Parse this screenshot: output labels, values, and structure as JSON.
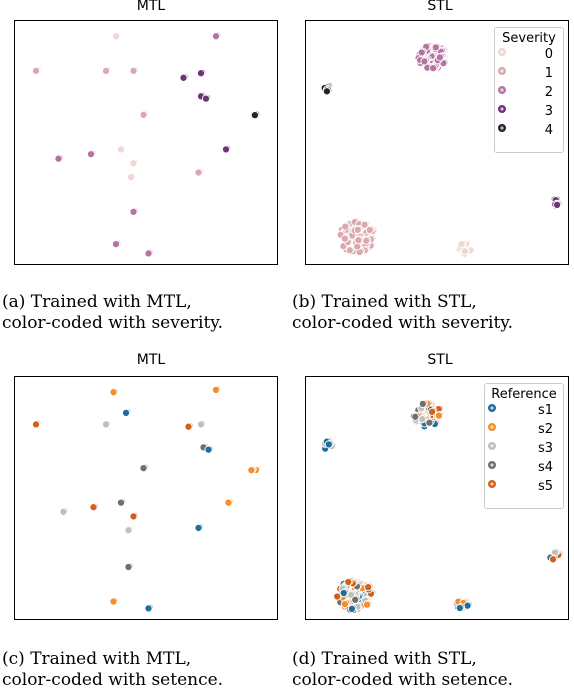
{
  "chart_data": [
    {
      "type": "scatter",
      "title": "MTL",
      "caption": [
        "(a) Trained with MTL,",
        "color-coded with severity."
      ],
      "legend": null,
      "clusters": [
        {
          "x": 0.38,
          "y": 0.96,
          "n": 1,
          "cls": 0
        },
        {
          "x": 0.78,
          "y": 0.96,
          "n": 1,
          "cls": 2
        },
        {
          "x": 0.06,
          "y": 0.81,
          "n": 1,
          "cls": 1
        },
        {
          "x": 0.34,
          "y": 0.81,
          "n": 1,
          "cls": 1
        },
        {
          "x": 0.45,
          "y": 0.81,
          "n": 1,
          "cls": 1
        },
        {
          "x": 0.65,
          "y": 0.78,
          "n": 1,
          "cls": 3
        },
        {
          "x": 0.72,
          "y": 0.8,
          "n": 1,
          "cls": 3
        },
        {
          "x": 0.72,
          "y": 0.7,
          "n": 1,
          "cls": 3
        },
        {
          "x": 0.74,
          "y": 0.69,
          "n": 1,
          "cls": 3
        },
        {
          "x": 0.94,
          "y": 0.61,
          "n": 3,
          "cls": 4
        },
        {
          "x": 0.49,
          "y": 0.62,
          "n": 1,
          "cls": 1
        },
        {
          "x": 0.4,
          "y": 0.47,
          "n": 1,
          "cls": 0
        },
        {
          "x": 0.82,
          "y": 0.47,
          "n": 1,
          "cls": 3
        },
        {
          "x": 0.15,
          "y": 0.43,
          "n": 1,
          "cls": 2
        },
        {
          "x": 0.28,
          "y": 0.45,
          "n": 1,
          "cls": 2
        },
        {
          "x": 0.45,
          "y": 0.41,
          "n": 1,
          "cls": 0
        },
        {
          "x": 0.71,
          "y": 0.37,
          "n": 1,
          "cls": 1
        },
        {
          "x": 0.44,
          "y": 0.35,
          "n": 1,
          "cls": 0
        },
        {
          "x": 0.45,
          "y": 0.2,
          "n": 1,
          "cls": 2
        },
        {
          "x": 0.38,
          "y": 0.06,
          "n": 1,
          "cls": 2
        },
        {
          "x": 0.51,
          "y": 0.02,
          "n": 1,
          "cls": 2
        }
      ]
    },
    {
      "type": "scatter",
      "title": "STL",
      "caption": [
        "(b) Trained with STL,",
        "color-coded with severity."
      ],
      "legend": {
        "title": "Severity",
        "entries": [
          "0",
          "1",
          "2",
          "3",
          "4"
        ]
      },
      "clusters": [
        {
          "x": 0.48,
          "y": 0.87,
          "n": 55,
          "r": 0.055,
          "cls": 2
        },
        {
          "x": 0.06,
          "y": 0.73,
          "n": 5,
          "r": 0.012,
          "cls": 4
        },
        {
          "x": 0.98,
          "y": 0.24,
          "n": 9,
          "r": 0.018,
          "cls": 3
        },
        {
          "x": 0.18,
          "y": 0.09,
          "n": 65,
          "r": 0.07,
          "cls": 1
        },
        {
          "x": 0.61,
          "y": 0.04,
          "n": 12,
          "r": 0.025,
          "cls": 0
        }
      ]
    },
    {
      "type": "scatter",
      "title": "MTL",
      "caption": [
        "(c) Trained with MTL,",
        "color-coded with setence."
      ],
      "legend": null,
      "clusters": [
        {
          "x": 0.37,
          "y": 0.96,
          "n": 1,
          "cls": 1
        },
        {
          "x": 0.78,
          "y": 0.97,
          "n": 1,
          "cls": 1
        },
        {
          "x": 0.42,
          "y": 0.87,
          "n": 1,
          "cls": 0
        },
        {
          "x": 0.06,
          "y": 0.82,
          "n": 1,
          "cls": 4
        },
        {
          "x": 0.34,
          "y": 0.82,
          "n": 1,
          "cls": 2
        },
        {
          "x": 0.67,
          "y": 0.81,
          "n": 1,
          "cls": 4
        },
        {
          "x": 0.72,
          "y": 0.82,
          "n": 1,
          "cls": 2
        },
        {
          "x": 0.73,
          "y": 0.72,
          "n": 1,
          "cls": 3
        },
        {
          "x": 0.75,
          "y": 0.71,
          "n": 1,
          "cls": 0
        },
        {
          "x": 0.93,
          "y": 0.62,
          "n": 4,
          "cls": 1
        },
        {
          "x": 0.49,
          "y": 0.63,
          "n": 1,
          "cls": 3
        },
        {
          "x": 0.83,
          "y": 0.48,
          "n": 1,
          "cls": 1
        },
        {
          "x": 0.17,
          "y": 0.44,
          "n": 1,
          "cls": 2
        },
        {
          "x": 0.29,
          "y": 0.46,
          "n": 1,
          "cls": 4
        },
        {
          "x": 0.4,
          "y": 0.48,
          "n": 1,
          "cls": 3
        },
        {
          "x": 0.45,
          "y": 0.42,
          "n": 1,
          "cls": 4
        },
        {
          "x": 0.71,
          "y": 0.37,
          "n": 1,
          "cls": 0
        },
        {
          "x": 0.43,
          "y": 0.36,
          "n": 1,
          "cls": 2
        },
        {
          "x": 0.43,
          "y": 0.2,
          "n": 1,
          "cls": 3
        },
        {
          "x": 0.37,
          "y": 0.05,
          "n": 1,
          "cls": 1
        },
        {
          "x": 0.51,
          "y": 0.02,
          "n": 1,
          "cls": 0
        }
      ]
    },
    {
      "type": "scatter",
      "title": "STL",
      "caption": [
        "(d) Trained with STL,",
        "color-coded with setence."
      ],
      "legend": {
        "title": "Reference",
        "entries": [
          "s1",
          "s2",
          "s3",
          "s4",
          "s5"
        ]
      },
      "clusters": [
        {
          "x": 0.46,
          "y": 0.86,
          "n": 55,
          "r": 0.055,
          "cls": "mix"
        },
        {
          "x": 0.06,
          "y": 0.73,
          "n": 6,
          "r": 0.02,
          "cls": "mix"
        },
        {
          "x": 0.97,
          "y": 0.25,
          "n": 10,
          "r": 0.02,
          "cls": "mix"
        },
        {
          "x": 0.17,
          "y": 0.08,
          "n": 65,
          "r": 0.07,
          "cls": "mix"
        },
        {
          "x": 0.6,
          "y": 0.04,
          "n": 12,
          "r": 0.025,
          "cls": "mix"
        }
      ]
    }
  ],
  "palettes": {
    "severity": [
      "#f0d7d1",
      "#dba8ae",
      "#b673a0",
      "#6f3377",
      "#2b1f2e"
    ],
    "reference": [
      "#1f6e9c",
      "#f28e2b",
      "#bfbfbf",
      "#6f6f6f",
      "#d2601a"
    ]
  }
}
